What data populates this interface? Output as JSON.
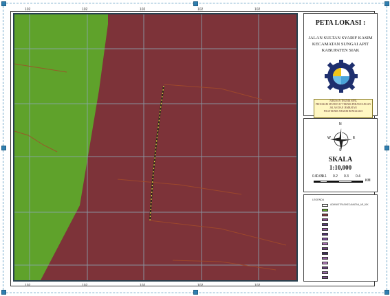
{
  "map": {
    "top_ticks": [
      "102",
      "102",
      "102",
      "102",
      "102"
    ],
    "bottom_ticks": [
      "102",
      "102",
      "102",
      "102",
      "102"
    ],
    "colors": {
      "green_area": "#5fa22b",
      "maroon_area": "#7d3339",
      "route": "#f0d24a",
      "grid": "#8da9b6",
      "lines": "#a34b2a"
    }
  },
  "title": {
    "heading": "PETA LOKASI :",
    "line1": "JALAN SULTAN SYARIF KASIM",
    "line2": "KECAMATAN SUNGAI APIT",
    "line3": "KABUPATEN SIAK"
  },
  "institution": {
    "lines": [
      "JURUSAN TEKNIK SIPIL",
      "PROGRAM STUDI D-IV TEKNIK PERANCANGAN",
      "JALAN DAN JEMBATAN",
      "POLITEKNIK NEGERI BENGKALIS"
    ]
  },
  "compass": {
    "n": "N",
    "s": "S",
    "e": "E",
    "w": "W"
  },
  "scale": {
    "label": "SKALA",
    "ratio": "1:10,000",
    "ticks": [
      "0.0",
      "0.05",
      "0.1",
      "0.2",
      "0.3",
      "0.4"
    ],
    "unit": "KM"
  },
  "legend": {
    "title": "LEGENDA",
    "items": [
      {
        "label": "ADMINISTRASIKECAMATAN_AR_50K",
        "color": "#ffffff"
      },
      {
        "label": "",
        "color": "#5fa22b"
      },
      {
        "label": "",
        "color": "#7d3339"
      },
      {
        "label": "",
        "color": "#8a4e8f"
      },
      {
        "label": "",
        "color": "#5b3d7a"
      },
      {
        "label": "",
        "color": "#9b59a6"
      },
      {
        "label": "",
        "color": "#4d2f6b"
      },
      {
        "label": "",
        "color": "#7a4a9a"
      },
      {
        "label": "",
        "color": "#a66bb0"
      },
      {
        "label": "",
        "color": "#6b3f80"
      },
      {
        "label": "",
        "color": "#3f2a5c"
      },
      {
        "label": "",
        "color": "#8f5a9e"
      },
      {
        "label": "",
        "color": "#b67cbf"
      },
      {
        "label": "",
        "color": "#5e3a74"
      },
      {
        "label": "",
        "color": "#9a6aa8"
      },
      {
        "label": "",
        "color": "#7c5290"
      }
    ]
  }
}
